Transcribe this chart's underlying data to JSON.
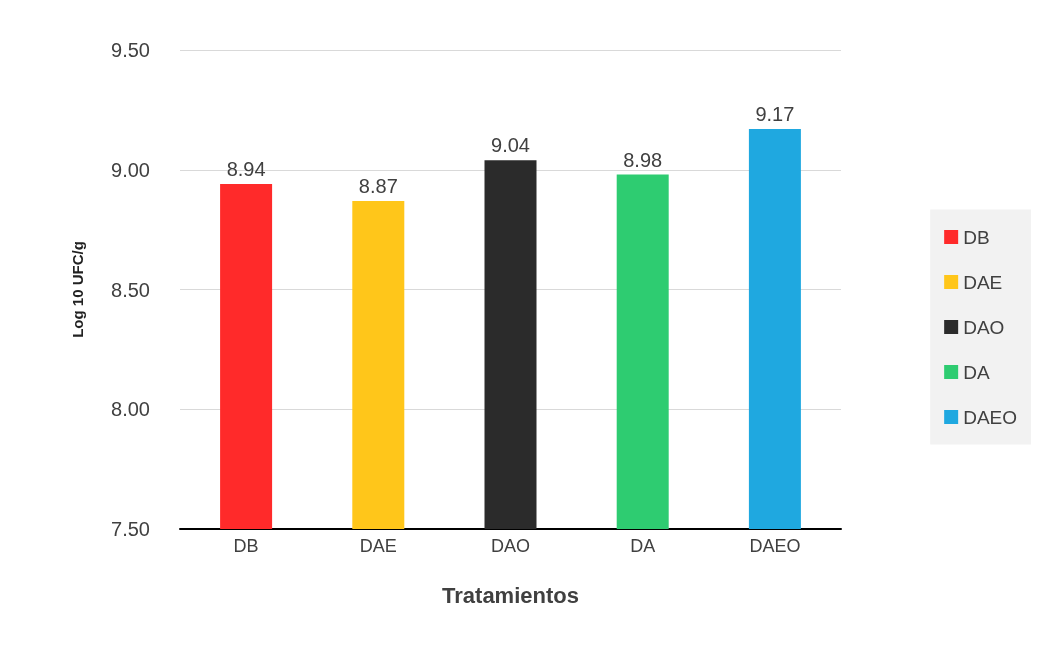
{
  "chart_data": {
    "type": "bar",
    "xlabel": "Tratamientos",
    "ylabel": "Log 10 UFC/g",
    "categories": [
      "DB",
      "DAE",
      "DAO",
      "DA",
      "DAEO"
    ],
    "series": [
      {
        "name": "DB",
        "color": "#ff2a2a",
        "values": [
          8.94,
          null,
          null,
          null,
          null
        ]
      },
      {
        "name": "DAE",
        "color": "#ffc61a",
        "values": [
          null,
          8.87,
          null,
          null,
          null
        ]
      },
      {
        "name": "DAO",
        "color": "#2b2b2b",
        "values": [
          null,
          null,
          9.04,
          null,
          null
        ]
      },
      {
        "name": "DA",
        "color": "#2ecc71",
        "values": [
          null,
          null,
          null,
          8.98,
          null
        ]
      },
      {
        "name": "DAEO",
        "color": "#1fa8e0",
        "values": [
          null,
          null,
          null,
          null,
          9.17
        ]
      }
    ],
    "ylim": [
      7.5,
      9.5
    ],
    "yticks": [
      {
        "value": 7.5,
        "label": "7.50"
      },
      {
        "value": 8,
        "label": "8.00"
      },
      {
        "value": 8.5,
        "label": "8.50"
      },
      {
        "value": 9,
        "label": "9.00"
      },
      {
        "value": 9.5,
        "label": "9.50"
      }
    ],
    "grid": "y",
    "legend": "right",
    "data_labels": true
  }
}
